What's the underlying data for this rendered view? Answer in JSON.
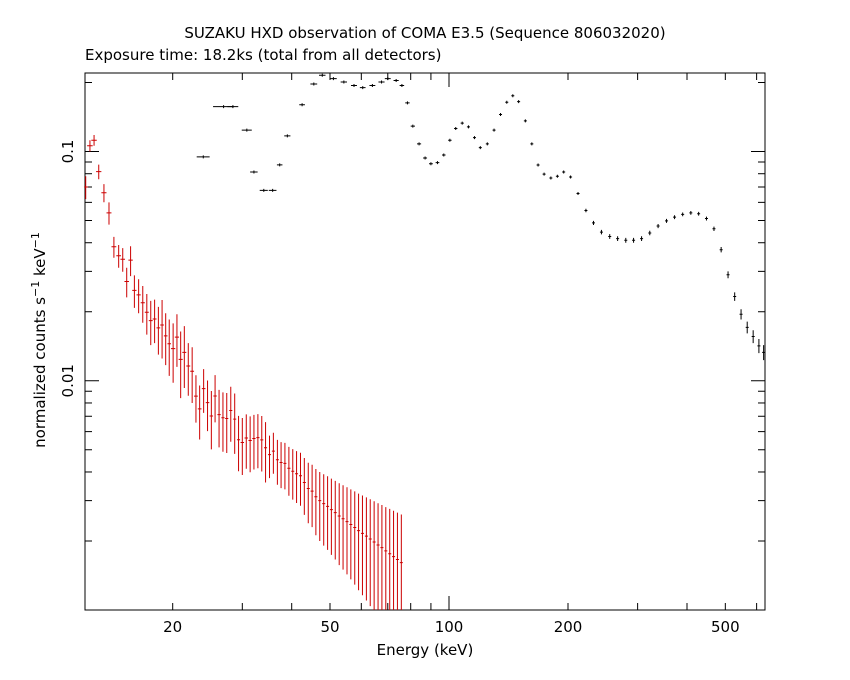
{
  "chart_data": {
    "type": "scatter",
    "title": "SUZAKU HXD observation of COMA E3.5 (Sequence 806032020)",
    "subtitle": "Exposure time: 18.2ks (total from all detectors)",
    "xlabel": "Energy (keV)",
    "ylabel": {
      "main": "normalized counts s",
      "exp1": "−1",
      "mid": " keV",
      "exp2": "−1"
    },
    "xscale": "log",
    "yscale": "log",
    "xlim": [
      12,
      630
    ],
    "ylim": [
      0.001,
      0.22
    ],
    "x_ticks": [
      {
        "value": 20,
        "label": "20"
      },
      {
        "value": 50,
        "label": "50"
      },
      {
        "value": 100,
        "label": "100"
      },
      {
        "value": 200,
        "label": "200"
      },
      {
        "value": 500,
        "label": "500"
      }
    ],
    "y_ticks": [
      {
        "value": 0.01,
        "label": "0.01"
      },
      {
        "value": 0.1,
        "label": "0.1"
      }
    ],
    "grid": false,
    "series": [
      {
        "color": "#000000",
        "points": [
          [
            23.9,
            0.0948,
            0.001,
            0.9
          ],
          [
            26.9,
            0.157,
            0.0012,
            1.6
          ],
          [
            28.4,
            0.157,
            0.0012,
            0.9
          ],
          [
            30.8,
            0.124,
            0.001,
            0.9
          ],
          [
            32.1,
            0.0814,
            0.001,
            0.7
          ],
          [
            34.0,
            0.0677,
            0.001,
            0.8
          ],
          [
            35.8,
            0.0677,
            0.0008,
            0.8
          ],
          [
            37.3,
            0.0874,
            0.0008,
            0.6
          ],
          [
            39.0,
            0.117,
            0.0008,
            0.7
          ],
          [
            42.5,
            0.16,
            0.001,
            0.7
          ],
          [
            45.5,
            0.197,
            0.001,
            0.9
          ],
          [
            47.8,
            0.215,
            0.001,
            0.9
          ],
          [
            51.0,
            0.208,
            0.001,
            1.0
          ],
          [
            54.2,
            0.201,
            0.001,
            1.0
          ],
          [
            57.5,
            0.194,
            0.001,
            1.0
          ],
          [
            60.5,
            0.19,
            0.001,
            1.0
          ],
          [
            64.0,
            0.194,
            0.001,
            1.1
          ],
          [
            67.5,
            0.201,
            0.001,
            1.2
          ],
          [
            70.0,
            0.208,
            0.001,
            1.2
          ],
          [
            73.5,
            0.204,
            0.001,
            1.1
          ],
          [
            76.0,
            0.194,
            0.001,
            1.0
          ],
          [
            78.5,
            0.163,
            0.001,
            1.0
          ],
          [
            81.0,
            0.129,
            0.001,
            1.0
          ],
          [
            84.0,
            0.108,
            0.001,
            1.0
          ],
          [
            87.0,
            0.0937,
            0.001,
            1.0
          ],
          [
            90.0,
            0.0884,
            0.001,
            1.0
          ],
          [
            93.5,
            0.0894,
            0.001,
            1.0
          ],
          [
            97.0,
            0.0966,
            0.001,
            1.0
          ],
          [
            100.5,
            0.112,
            0.001,
            1.0
          ],
          [
            104.0,
            0.126,
            0.001,
            1.0
          ],
          [
            108.0,
            0.133,
            0.001,
            1.0
          ],
          [
            112.0,
            0.128,
            0.001,
            1.0
          ],
          [
            116.0,
            0.115,
            0.001,
            1.0
          ],
          [
            120.0,
            0.104,
            0.001,
            1.0
          ],
          [
            125.0,
            0.108,
            0.001,
            1.0
          ],
          [
            130.0,
            0.124,
            0.001,
            1.0
          ],
          [
            135.0,
            0.145,
            0.001,
            1.0
          ],
          [
            140.0,
            0.164,
            0.001,
            1.0
          ],
          [
            145.0,
            0.175,
            0.001,
            1.0
          ],
          [
            150.0,
            0.165,
            0.001,
            1.0
          ],
          [
            156.0,
            0.136,
            0.001,
            1.0
          ],
          [
            162.0,
            0.108,
            0.001,
            1.0
          ],
          [
            168.0,
            0.0873,
            0.001,
            1.0
          ],
          [
            174.0,
            0.0797,
            0.001,
            1.0
          ],
          [
            181.0,
            0.0766,
            0.001,
            1.0
          ],
          [
            188.0,
            0.078,
            0.001,
            1.0
          ],
          [
            195.0,
            0.0814,
            0.001,
            1.0
          ],
          [
            203.0,
            0.0774,
            0.001,
            1.0
          ],
          [
            212.0,
            0.0656,
            0.001,
            1.0
          ],
          [
            222.0,
            0.0553,
            0.001,
            1.0
          ],
          [
            232.0,
            0.0488,
            0.001,
            1.0
          ],
          [
            243.0,
            0.0445,
            0.001,
            1.0
          ],
          [
            255.0,
            0.0426,
            0.001,
            1.0
          ],
          [
            267.0,
            0.0417,
            0.001,
            1.0
          ],
          [
            280.0,
            0.041,
            0.001,
            1.0
          ],
          [
            293.0,
            0.041,
            0.001,
            1.0
          ],
          [
            307.0,
            0.0417,
            0.001,
            1.0
          ],
          [
            322.0,
            0.0441,
            0.001,
            1.0
          ],
          [
            338.0,
            0.0473,
            0.001,
            1.0
          ],
          [
            355.0,
            0.0498,
            0.001,
            1.0
          ],
          [
            372.0,
            0.0517,
            0.001,
            1.0
          ],
          [
            390.0,
            0.0532,
            0.001,
            1.0
          ],
          [
            409.0,
            0.054,
            0.001,
            1.0
          ],
          [
            428.0,
            0.0535,
            0.001,
            1.0
          ],
          [
            448.0,
            0.051,
            0.001,
            1.0
          ],
          [
            468.0,
            0.046,
            0.001,
            1.0
          ],
          [
            488.0,
            0.0373,
            0.001,
            1.0
          ],
          [
            508.0,
            0.029,
            0.001,
            1.0
          ],
          [
            528.0,
            0.0233,
            0.001,
            1.0
          ],
          [
            548.0,
            0.0195,
            0.001,
            1.0
          ],
          [
            568.0,
            0.0171,
            0.001,
            1.0
          ],
          [
            588.0,
            0.0156,
            0.001,
            1.0
          ],
          [
            608.0,
            0.0142,
            0.001,
            1.0
          ],
          [
            625.0,
            0.0133,
            0.001,
            1.0
          ]
        ]
      },
      {
        "color": "#cc0000",
        "points": [
          [
            12.05,
            0.07,
            0.008,
            0.15
          ],
          [
            12.35,
            0.106,
            0.006,
            0.2
          ],
          [
            12.65,
            0.112,
            0.006,
            0.2
          ],
          [
            13.0,
            0.0817,
            0.006,
            0.2
          ],
          [
            13.4,
            0.0661,
            0.006,
            0.2
          ],
          [
            13.8,
            0.054,
            0.006,
            0.2
          ],
          [
            14.2,
            0.0384,
            0.004,
            0.2
          ],
          [
            14.6,
            0.0351,
            0.004,
            0.2
          ],
          [
            14.95,
            0.0339,
            0.004,
            0.2
          ],
          [
            15.3,
            0.0271,
            0.004,
            0.2
          ],
          [
            15.65,
            0.0336,
            0.005,
            0.2
          ],
          [
            16.0,
            0.0248,
            0.004,
            0.2
          ],
          [
            16.4,
            0.0237,
            0.004,
            0.2
          ],
          [
            16.8,
            0.0219,
            0.004,
            0.2
          ],
          [
            17.2,
            0.0199,
            0.004,
            0.2
          ],
          [
            17.6,
            0.0183,
            0.004,
            0.2
          ],
          [
            18.0,
            0.0186,
            0.004,
            0.2
          ],
          [
            18.4,
            0.017,
            0.004,
            0.2
          ],
          [
            18.8,
            0.0175,
            0.005,
            0.2
          ],
          [
            19.2,
            0.0157,
            0.004,
            0.2
          ],
          [
            19.6,
            0.0145,
            0.004,
            0.2
          ],
          [
            20.05,
            0.0138,
            0.004,
            0.25
          ],
          [
            20.5,
            0.0155,
            0.004,
            0.25
          ],
          [
            20.95,
            0.0124,
            0.004,
            0.25
          ],
          [
            21.4,
            0.0133,
            0.004,
            0.25
          ],
          [
            21.9,
            0.0116,
            0.003,
            0.25
          ],
          [
            22.4,
            0.011,
            0.003,
            0.25
          ],
          [
            22.9,
            0.00857,
            0.002,
            0.25
          ],
          [
            23.4,
            0.00754,
            0.002,
            0.25
          ],
          [
            23.95,
            0.00924,
            0.002,
            0.25
          ],
          [
            24.5,
            0.00803,
            0.002,
            0.25
          ],
          [
            25.05,
            0.00702,
            0.002,
            0.25
          ],
          [
            25.6,
            0.00858,
            0.002,
            0.25
          ],
          [
            26.2,
            0.00712,
            0.002,
            0.25
          ],
          [
            26.8,
            0.0069,
            0.002,
            0.25
          ],
          [
            27.4,
            0.00684,
            0.002,
            0.25
          ],
          [
            28.05,
            0.00742,
            0.002,
            0.25
          ],
          [
            28.7,
            0.0068,
            0.002,
            0.25
          ],
          [
            29.35,
            0.00553,
            0.0015,
            0.25
          ],
          [
            30.0,
            0.00538,
            0.0015,
            0.3
          ],
          [
            30.7,
            0.00563,
            0.0015,
            0.3
          ],
          [
            31.4,
            0.00549,
            0.0015,
            0.3
          ],
          [
            32.1,
            0.0056,
            0.0015,
            0.3
          ],
          [
            32.85,
            0.00565,
            0.0015,
            0.3
          ],
          [
            33.6,
            0.00552,
            0.0015,
            0.3
          ],
          [
            34.35,
            0.0051,
            0.0015,
            0.3
          ],
          [
            35.15,
            0.00476,
            0.001,
            0.3
          ],
          [
            35.95,
            0.00493,
            0.001,
            0.3
          ],
          [
            36.8,
            0.00452,
            0.001,
            0.3
          ],
          [
            37.6,
            0.0044,
            0.001,
            0.3
          ],
          [
            38.45,
            0.00436,
            0.001,
            0.3
          ],
          [
            39.35,
            0.00415,
            0.001,
            0.35
          ],
          [
            40.25,
            0.00403,
            0.001,
            0.35
          ],
          [
            41.15,
            0.00393,
            0.001,
            0.35
          ],
          [
            42.1,
            0.00385,
            0.001,
            0.35
          ],
          [
            43.05,
            0.0036,
            0.001,
            0.35
          ],
          [
            44.05,
            0.00339,
            0.001,
            0.35
          ],
          [
            45.05,
            0.0033,
            0.001,
            0.35
          ],
          [
            46.05,
            0.00312,
            0.001,
            0.35
          ],
          [
            47.1,
            0.003,
            0.001,
            0.35
          ],
          [
            48.2,
            0.00291,
            0.001,
            0.4
          ],
          [
            49.3,
            0.00283,
            0.001,
            0.4
          ],
          [
            50.4,
            0.00274,
            0.001,
            0.4
          ],
          [
            51.55,
            0.00266,
            0.001,
            0.4
          ],
          [
            52.75,
            0.00257,
            0.001,
            0.4
          ],
          [
            53.95,
            0.0025,
            0.001,
            0.4
          ],
          [
            55.2,
            0.00243,
            0.001,
            0.4
          ],
          [
            56.45,
            0.00236,
            0.001,
            0.45
          ],
          [
            57.75,
            0.00229,
            0.001,
            0.45
          ],
          [
            59.05,
            0.00222,
            0.001,
            0.45
          ],
          [
            60.4,
            0.00216,
            0.001,
            0.45
          ],
          [
            61.8,
            0.0021,
            0.001,
            0.45
          ],
          [
            63.2,
            0.00204,
            0.001,
            0.5
          ],
          [
            64.65,
            0.00198,
            0.001,
            0.5
          ],
          [
            66.15,
            0.00192,
            0.001,
            0.5
          ],
          [
            67.65,
            0.00187,
            0.001,
            0.5
          ],
          [
            69.2,
            0.00181,
            0.001,
            0.5
          ],
          [
            70.8,
            0.00176,
            0.001,
            0.55
          ],
          [
            72.4,
            0.00171,
            0.001,
            0.55
          ],
          [
            74.05,
            0.00166,
            0.001,
            0.55
          ],
          [
            75.75,
            0.00161,
            0.001,
            0.55
          ]
        ]
      }
    ]
  }
}
